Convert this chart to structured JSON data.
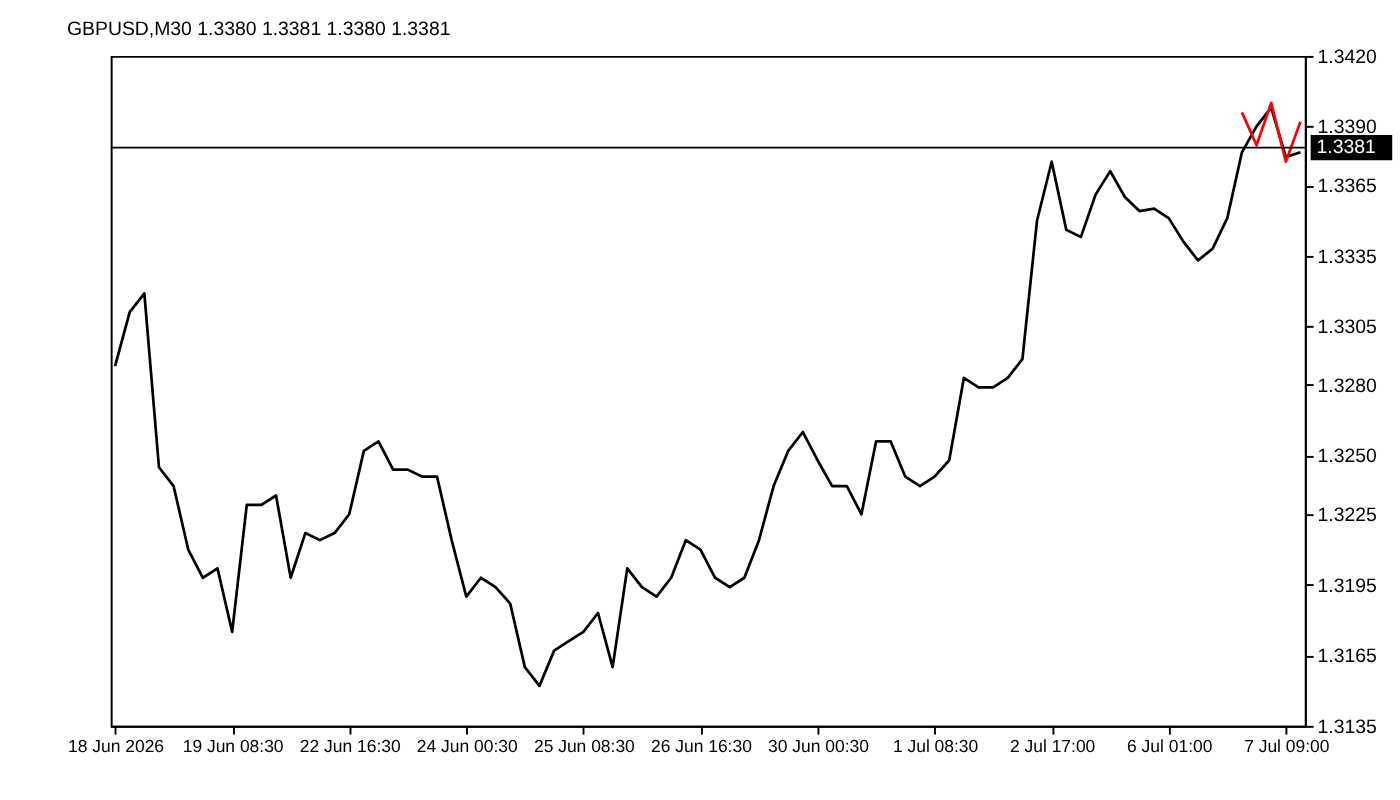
{
  "chart_data": {
    "type": "line",
    "title": "GBPUSD,M30  1.3380 1.3381 1.3380 1.3381",
    "categories": [
      "18 Jun 2026",
      null,
      null,
      null,
      null,
      null,
      null,
      null,
      "19 Jun 08:30",
      null,
      null,
      null,
      null,
      null,
      null,
      null,
      "22 Jun 16:30",
      null,
      null,
      null,
      null,
      null,
      null,
      null,
      "24 Jun 00:30",
      null,
      null,
      null,
      null,
      null,
      null,
      null,
      "25 Jun 08:30",
      null,
      null,
      null,
      null,
      null,
      null,
      null,
      "26 Jun 16:30",
      null,
      null,
      null,
      null,
      null,
      null,
      null,
      "30 Jun 00:30",
      null,
      null,
      null,
      null,
      null,
      null,
      null,
      "1 Jul 08:30",
      null,
      null,
      null,
      null,
      null,
      null,
      null,
      "2 Jul 17:00",
      null,
      null,
      null,
      null,
      null,
      null,
      null,
      "6 Jul 01:00",
      null,
      null,
      null,
      null,
      null,
      null,
      null,
      "7 Jul 09:00",
      null
    ],
    "series": [
      {
        "color": "#000000",
        "values": [
          1.3288,
          1.3311,
          1.3319,
          1.3245,
          1.3237,
          1.321,
          1.3198,
          1.3202,
          1.3175,
          1.3229,
          1.3229,
          1.3233,
          1.3198,
          1.3217,
          1.3214,
          1.3217,
          1.3225,
          1.3252,
          1.3256,
          1.3244,
          1.3244,
          1.3241,
          1.3241,
          1.3214,
          1.319,
          1.3198,
          1.3194,
          1.3187,
          1.316,
          1.3152,
          1.3167,
          1.3171,
          1.3175,
          1.3183,
          1.316,
          1.3202,
          1.3194,
          1.319,
          1.3198,
          1.3214,
          1.321,
          1.3198,
          1.3194,
          1.3198,
          1.3214,
          1.3237,
          1.3252,
          1.326,
          1.3248,
          1.3237,
          1.3237,
          1.3225,
          1.3256,
          1.3256,
          1.3241,
          1.3237,
          1.3241,
          1.3248,
          1.3283,
          1.3279,
          1.3279,
          1.3283,
          1.3291,
          1.335,
          1.3375,
          1.3346,
          1.3343,
          1.3361,
          1.3371,
          1.336,
          1.3354,
          1.3355,
          1.3351,
          1.3341,
          1.3333,
          1.3338,
          1.3351,
          1.3379,
          1.339,
          1.3398,
          1.3377,
          1.3379
        ]
      },
      {
        "color": "#ff0000",
        "values": [
          null,
          null,
          null,
          null,
          null,
          null,
          null,
          null,
          null,
          null,
          null,
          null,
          null,
          null,
          null,
          null,
          null,
          null,
          null,
          null,
          null,
          null,
          null,
          null,
          null,
          null,
          null,
          null,
          null,
          null,
          null,
          null,
          null,
          null,
          null,
          null,
          null,
          null,
          null,
          null,
          null,
          null,
          null,
          null,
          null,
          null,
          null,
          null,
          null,
          null,
          null,
          null,
          null,
          null,
          null,
          null,
          null,
          null,
          null,
          null,
          null,
          null,
          null,
          null,
          null,
          null,
          null,
          null,
          null,
          null,
          null,
          null,
          null,
          null,
          null,
          null,
          null,
          1.3396,
          1.3382,
          1.34,
          1.3375,
          1.3392
        ]
      }
    ],
    "ylim": [
      1.3135,
      1.342
    ],
    "yticks": [
      1.3135,
      1.3165,
      1.3195,
      1.3225,
      {
        "value": 1.325,
        "label": "1.3250"
      },
      {
        "value": 1.328,
        "label": "1.3280"
      },
      1.3305,
      1.3335,
      1.3365,
      {
        "value": 1.339,
        "label": "1.3390"
      },
      {
        "value": 1.342,
        "label": "1.3420"
      }
    ],
    "ref_lines": [
      {
        "axis": "y",
        "value": 1.3381,
        "label": "1.3381",
        "color": "#000000"
      }
    ],
    "grid": false,
    "legend": false
  }
}
